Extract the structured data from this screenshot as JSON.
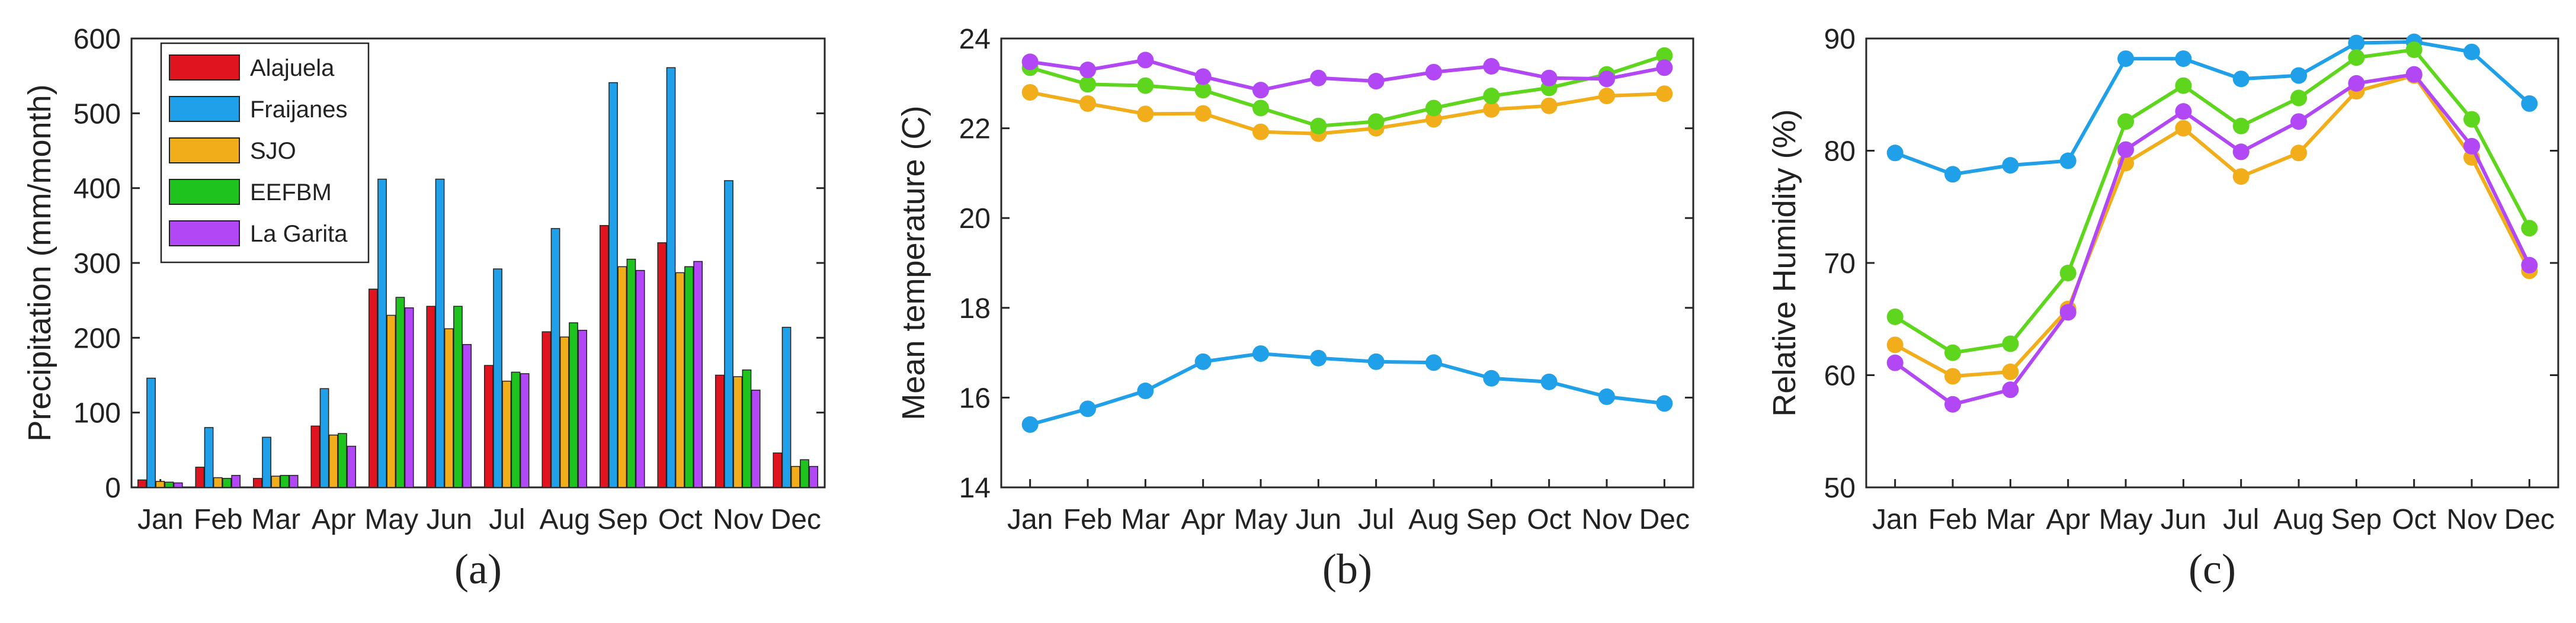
{
  "chart_data": [
    {
      "type": "bar",
      "panel_label": "(a)",
      "ylabel": "Precipitation (mm/month)",
      "xlabel": "",
      "ylim": [
        0,
        600
      ],
      "yticks": [
        0,
        100,
        200,
        300,
        400,
        500,
        600
      ],
      "categories": [
        "Jan",
        "Feb",
        "Mar",
        "Apr",
        "May",
        "Jun",
        "Jul",
        "Aug",
        "Sep",
        "Oct",
        "Nov",
        "Dec"
      ],
      "legend_position": "top-left",
      "series": [
        {
          "name": "Alajuela",
          "color": "#e0141e",
          "values": [
            10,
            27,
            12,
            82,
            265,
            242,
            163,
            208,
            350,
            327,
            150,
            46
          ]
        },
        {
          "name": "Fraijanes",
          "color": "#1fa0e8",
          "values": [
            146,
            80,
            67,
            132,
            412,
            412,
            292,
            346,
            541,
            561,
            410,
            214
          ]
        },
        {
          "name": "SJO",
          "color": "#f2ad1a",
          "values": [
            8,
            13,
            15,
            70,
            230,
            212,
            142,
            201,
            295,
            287,
            148,
            28
          ]
        },
        {
          "name": "EEFBM",
          "color": "#1ec31e",
          "values": [
            7,
            12,
            16,
            72,
            254,
            242,
            154,
            220,
            305,
            295,
            157,
            37
          ]
        },
        {
          "name": "La Garita",
          "color": "#b147f5",
          "values": [
            6,
            16,
            16,
            55,
            240,
            191,
            152,
            210,
            290,
            302,
            130,
            28
          ]
        }
      ]
    },
    {
      "type": "line",
      "panel_label": "(b)",
      "ylabel": "Mean temperature (C)",
      "xlabel": "",
      "ylim": [
        14,
        24
      ],
      "yticks": [
        14,
        16,
        18,
        20,
        22,
        24
      ],
      "categories": [
        "Jan",
        "Feb",
        "Mar",
        "Apr",
        "May",
        "Jun",
        "Jul",
        "Aug",
        "Sep",
        "Oct",
        "Nov",
        "Dec"
      ],
      "series": [
        {
          "name": "Fraijanes",
          "color": "#1fa0e8",
          "values": [
            15.4,
            15.75,
            16.15,
            16.8,
            16.98,
            16.88,
            16.8,
            16.78,
            16.43,
            16.35,
            16.02,
            15.87
          ]
        },
        {
          "name": "SJO",
          "color": "#f2ad1a",
          "values": [
            22.8,
            22.55,
            22.32,
            22.33,
            21.92,
            21.88,
            22.0,
            22.2,
            22.42,
            22.5,
            22.72,
            22.77
          ]
        },
        {
          "name": "EEFBM",
          "color": "#5fd61e",
          "values": [
            23.35,
            22.98,
            22.95,
            22.85,
            22.45,
            22.05,
            22.15,
            22.45,
            22.72,
            22.9,
            23.2,
            23.62
          ]
        },
        {
          "name": "La Garita",
          "color": "#b147f5",
          "values": [
            23.48,
            23.3,
            23.52,
            23.15,
            22.85,
            23.12,
            23.05,
            23.25,
            23.38,
            23.12,
            23.1,
            23.35
          ]
        }
      ]
    },
    {
      "type": "line",
      "panel_label": "(c)",
      "ylabel": "Relative Humidity (%)",
      "xlabel": "",
      "ylim": [
        50,
        90
      ],
      "yticks": [
        50,
        60,
        70,
        80,
        90
      ],
      "categories": [
        "Jan",
        "Feb",
        "Mar",
        "Apr",
        "May",
        "Jun",
        "Jul",
        "Aug",
        "Sep",
        "Oct",
        "Nov",
        "Dec"
      ],
      "series": [
        {
          "name": "Fraijanes",
          "color": "#1fa0e8",
          "values": [
            79.8,
            77.9,
            78.7,
            79.1,
            88.2,
            88.2,
            86.4,
            86.7,
            89.6,
            89.7,
            88.8,
            84.2
          ]
        },
        {
          "name": "SJO",
          "color": "#f2ad1a",
          "values": [
            62.7,
            59.9,
            60.3,
            65.9,
            78.9,
            82.0,
            77.7,
            79.8,
            85.3,
            86.7,
            79.4,
            69.3
          ]
        },
        {
          "name": "EEFBM",
          "color": "#5fd61e",
          "values": [
            65.2,
            62.0,
            62.8,
            69.1,
            82.6,
            85.8,
            82.2,
            84.7,
            88.3,
            89.0,
            82.8,
            73.1
          ]
        },
        {
          "name": "La Garita",
          "color": "#b147f5",
          "values": [
            61.1,
            57.4,
            58.7,
            65.6,
            80.1,
            83.5,
            79.9,
            82.6,
            86.0,
            86.8,
            80.4,
            69.8
          ]
        }
      ]
    }
  ]
}
